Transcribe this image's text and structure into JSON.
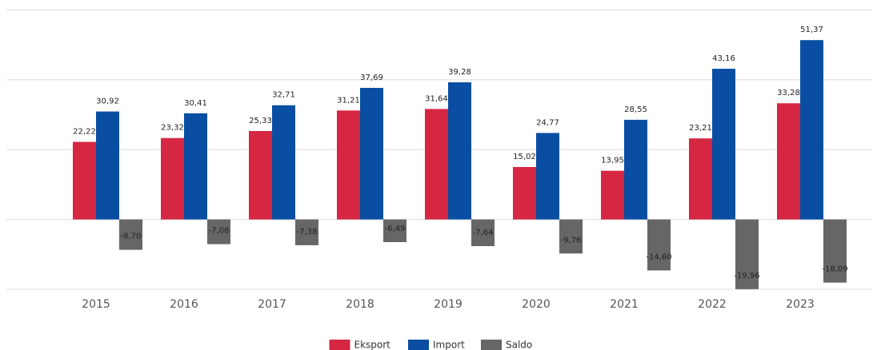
{
  "chart_data": {
    "type": "bar",
    "categories": [
      "2015",
      "2016",
      "2017",
      "2018",
      "2019",
      "2020",
      "2021",
      "2022",
      "2023"
    ],
    "series": [
      {
        "name": "Eksport",
        "color": "#d52642",
        "values": [
          22.22,
          23.32,
          25.33,
          31.21,
          31.64,
          15.02,
          13.95,
          23.21,
          33.28
        ],
        "value_labels": [
          "22,22",
          "23,32",
          "25,33",
          "31,21",
          "31,64",
          "15,02",
          "13,95",
          "23,21",
          "33,28"
        ]
      },
      {
        "name": "Import",
        "color": "#0a4ea3",
        "values": [
          30.92,
          30.41,
          32.71,
          37.69,
          39.28,
          24.77,
          28.55,
          43.16,
          51.37
        ],
        "value_labels": [
          "30,92",
          "30,41",
          "32,71",
          "37,69",
          "39,28",
          "24,77",
          "28,55",
          "43,16",
          "51,37"
        ]
      },
      {
        "name": "Saldo",
        "color": "#666666",
        "values": [
          -8.7,
          -7.08,
          -7.38,
          -6.49,
          -7.64,
          -9.76,
          -14.6,
          -19.96,
          -18.09
        ],
        "value_labels": [
          "-8,70",
          "-7,08",
          "-7,38",
          "-6,49",
          "-7,64",
          "-9,76",
          "-14,60",
          "-19,96",
          "-18,09"
        ]
      }
    ],
    "ylim": [
      -20,
      60
    ],
    "yticks": [
      -20,
      0,
      20,
      40,
      60
    ],
    "grid": true,
    "legend": "bottom"
  }
}
